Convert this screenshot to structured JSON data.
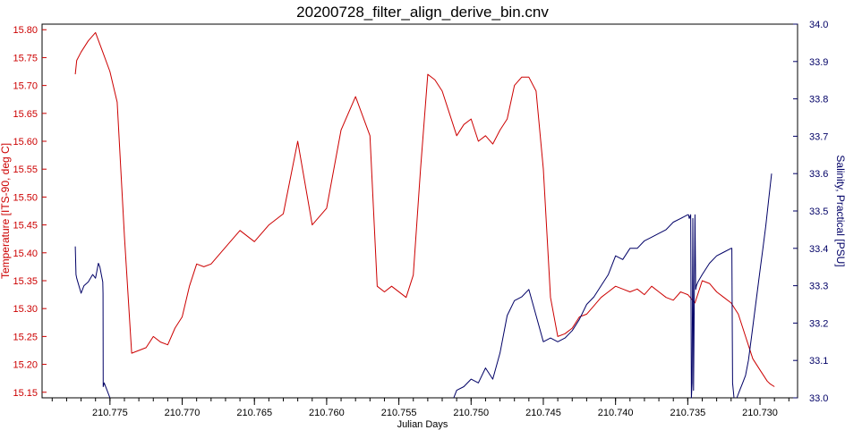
{
  "chart_data": {
    "type": "line",
    "title": "20200728_filter_align_derive_bin.cnv",
    "xlabel": "Julian Days",
    "ylabel_left": "Temperature [ITS-90, deg C]",
    "ylabel_right": "Salinity, Practical [PSU]",
    "x_reversed": true,
    "xlim": [
      210.7797,
      210.7274
    ],
    "ylim_left": [
      15.14,
      15.81
    ],
    "ylim_right": [
      33.0,
      34.0
    ],
    "x_ticks": [
      "210.775",
      "210.770",
      "210.765",
      "210.760",
      "210.755",
      "210.750",
      "210.745",
      "210.740",
      "210.735",
      "210.730"
    ],
    "x_tick_values": [
      210.775,
      210.77,
      210.765,
      210.76,
      210.755,
      210.75,
      210.745,
      210.74,
      210.735,
      210.73
    ],
    "y_left_ticks": [
      "15.15",
      "15.20",
      "15.25",
      "15.30",
      "15.35",
      "15.40",
      "15.45",
      "15.50",
      "15.55",
      "15.60",
      "15.65",
      "15.70",
      "15.75",
      "15.80"
    ],
    "y_left_tick_values": [
      15.15,
      15.2,
      15.25,
      15.3,
      15.35,
      15.4,
      15.45,
      15.5,
      15.55,
      15.6,
      15.65,
      15.7,
      15.75,
      15.8
    ],
    "y_right_ticks": [
      "33.0",
      "33.1",
      "33.2",
      "33.3",
      "33.4",
      "33.5",
      "33.6",
      "33.7",
      "33.8",
      "33.9",
      "34.0"
    ],
    "y_right_tick_values": [
      33.0,
      33.1,
      33.2,
      33.3,
      33.4,
      33.5,
      33.6,
      33.7,
      33.8,
      33.9,
      34.0
    ],
    "grid": false,
    "series": [
      {
        "axis": "left",
        "color": "#cc0000",
        "x": [
          210.7774,
          210.7773,
          210.777,
          210.7765,
          210.776,
          210.7755,
          210.775,
          210.7745,
          210.774,
          210.7735,
          210.773,
          210.7725,
          210.772,
          210.7715,
          210.771,
          210.7705,
          210.77,
          210.7695,
          210.769,
          210.7685,
          210.768,
          210.767,
          210.766,
          210.765,
          210.764,
          210.763,
          210.762,
          210.761,
          210.76,
          210.759,
          210.758,
          210.757,
          210.7565,
          210.756,
          210.7555,
          210.7545,
          210.754,
          210.7535,
          210.753,
          210.7525,
          210.752,
          210.7515,
          210.751,
          210.7505,
          210.75,
          210.7495,
          210.749,
          210.7485,
          210.748,
          210.7475,
          210.747,
          210.7465,
          210.746,
          210.7455,
          210.745,
          210.7445,
          210.744,
          210.7435,
          210.743,
          210.7425,
          210.742,
          210.7415,
          210.741,
          210.7405,
          210.74,
          210.7395,
          210.739,
          210.7385,
          210.738,
          210.7375,
          210.737,
          210.7365,
          210.736,
          210.7355,
          210.735,
          210.7345,
          210.734,
          210.7335,
          210.733,
          210.7325,
          210.732,
          210.7315,
          210.731,
          210.7305,
          210.73,
          210.7295,
          210.7293,
          210.729
        ],
        "values": [
          15.72,
          15.745,
          15.76,
          15.78,
          15.795,
          15.76,
          15.725,
          15.67,
          15.43,
          15.22,
          15.225,
          15.23,
          15.25,
          15.24,
          15.235,
          15.265,
          15.285,
          15.34,
          15.38,
          15.375,
          15.38,
          15.41,
          15.44,
          15.42,
          15.45,
          15.47,
          15.6,
          15.45,
          15.48,
          15.62,
          15.68,
          15.61,
          15.34,
          15.33,
          15.34,
          15.32,
          15.36,
          15.55,
          15.72,
          15.71,
          15.69,
          15.65,
          15.61,
          15.63,
          15.64,
          15.6,
          15.61,
          15.595,
          15.62,
          15.64,
          15.7,
          15.715,
          15.715,
          15.69,
          15.55,
          15.32,
          15.25,
          15.255,
          15.265,
          15.285,
          15.29,
          15.305,
          15.32,
          15.33,
          15.34,
          15.335,
          15.33,
          15.335,
          15.325,
          15.34,
          15.33,
          15.32,
          15.315,
          15.33,
          15.325,
          15.31,
          15.35,
          15.345,
          15.33,
          15.32,
          15.31,
          15.29,
          15.25,
          15.21,
          15.19,
          15.17,
          15.165,
          15.16
        ]
      },
      {
        "axis": "right",
        "color": "#000066",
        "x": [
          210.7774,
          210.77735,
          210.7773,
          210.777,
          210.7768,
          210.7765,
          210.7762,
          210.776,
          210.7758,
          210.7757,
          210.7756,
          210.7755,
          210.77548,
          210.77547,
          210.7754,
          210.7752,
          210.775
        ],
        "values": [
          33.405,
          33.33,
          33.32,
          33.28,
          33.3,
          33.31,
          33.33,
          33.32,
          33.36,
          33.35,
          33.33,
          33.31,
          33.28,
          33.03,
          33.04,
          33.02,
          33.0
        ]
      },
      {
        "axis": "right",
        "color": "#000066",
        "x": [
          210.7512,
          210.751,
          210.7505,
          210.75,
          210.7495,
          210.749,
          210.7485,
          210.748,
          210.7475,
          210.747,
          210.7465,
          210.746,
          210.7455,
          210.745,
          210.7445,
          210.744,
          210.7435,
          210.743,
          210.7425,
          210.742,
          210.7415,
          210.741,
          210.7405,
          210.74,
          210.7395,
          210.739,
          210.7385,
          210.738,
          210.7375,
          210.737,
          210.7365,
          210.736,
          210.7355,
          210.735,
          210.73495,
          210.7349,
          210.7348,
          210.73475,
          210.7347,
          210.73465,
          210.7346,
          210.7345,
          210.73445,
          210.7344,
          210.7343,
          210.734,
          210.7335,
          210.733,
          210.7325,
          210.732,
          210.73195,
          210.7319,
          210.7318
        ],
        "values": [
          33.0,
          33.02,
          33.03,
          33.05,
          33.04,
          33.08,
          33.05,
          33.12,
          33.22,
          33.26,
          33.27,
          33.29,
          33.22,
          33.15,
          33.16,
          33.15,
          33.16,
          33.18,
          33.21,
          33.25,
          33.27,
          33.3,
          33.33,
          33.38,
          33.37,
          33.4,
          33.4,
          33.42,
          33.43,
          33.44,
          33.45,
          33.47,
          33.48,
          33.49,
          33.49,
          33.48,
          33.49,
          33.0,
          33.04,
          33.48,
          33.02,
          33.49,
          33.29,
          33.3,
          33.31,
          33.33,
          33.36,
          33.38,
          33.39,
          33.4,
          33.4,
          33.04,
          33.0
        ]
      },
      {
        "axis": "right",
        "color": "#000066",
        "x": [
          210.7316,
          210.7314,
          210.7312,
          210.731,
          210.7308,
          210.7306,
          210.7304,
          210.7302,
          210.73,
          210.7298,
          210.7296,
          210.7294,
          210.7292
        ],
        "values": [
          33.0,
          33.02,
          33.04,
          33.06,
          33.1,
          33.16,
          33.22,
          33.28,
          33.34,
          33.4,
          33.46,
          33.53,
          33.6
        ]
      }
    ]
  }
}
